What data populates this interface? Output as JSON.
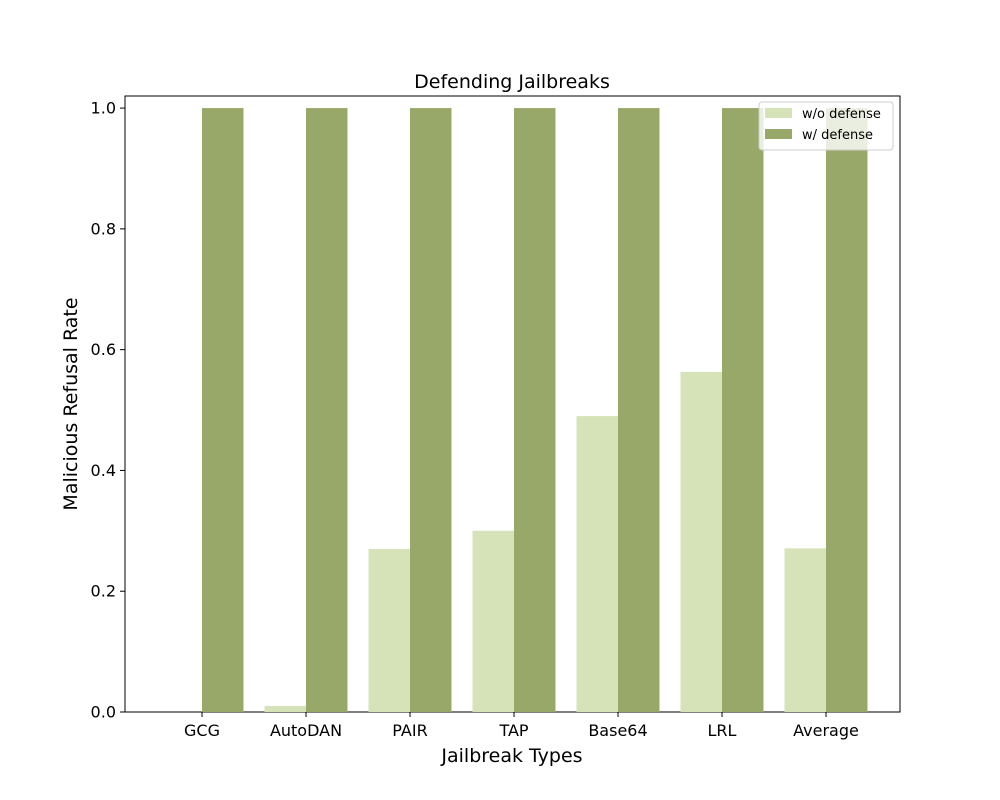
{
  "chart_data": {
    "type": "bar",
    "title": "Defending Jailbreaks",
    "xlabel": "Jailbreak Types",
    "ylabel": "Malicious Refusal Rate",
    "categories": [
      "GCG",
      "AutoDAN",
      "PAIR",
      "TAP",
      "Base64",
      "LRL",
      "Average"
    ],
    "series": [
      {
        "name": "w/o defense",
        "color": "#d6e3b8",
        "values": [
          0.0,
          0.01,
          0.27,
          0.3,
          0.49,
          0.563,
          0.271
        ]
      },
      {
        "name": "w/ defense",
        "color": "#98a869",
        "values": [
          1.0,
          1.0,
          1.0,
          1.0,
          1.0,
          1.0,
          1.0
        ]
      }
    ],
    "ylim": [
      0,
      1.02
    ],
    "yticks": [
      "0.0",
      "0.2",
      "0.4",
      "0.6",
      "0.8",
      "1.0"
    ],
    "grid": false,
    "legend_position": "top-right"
  }
}
